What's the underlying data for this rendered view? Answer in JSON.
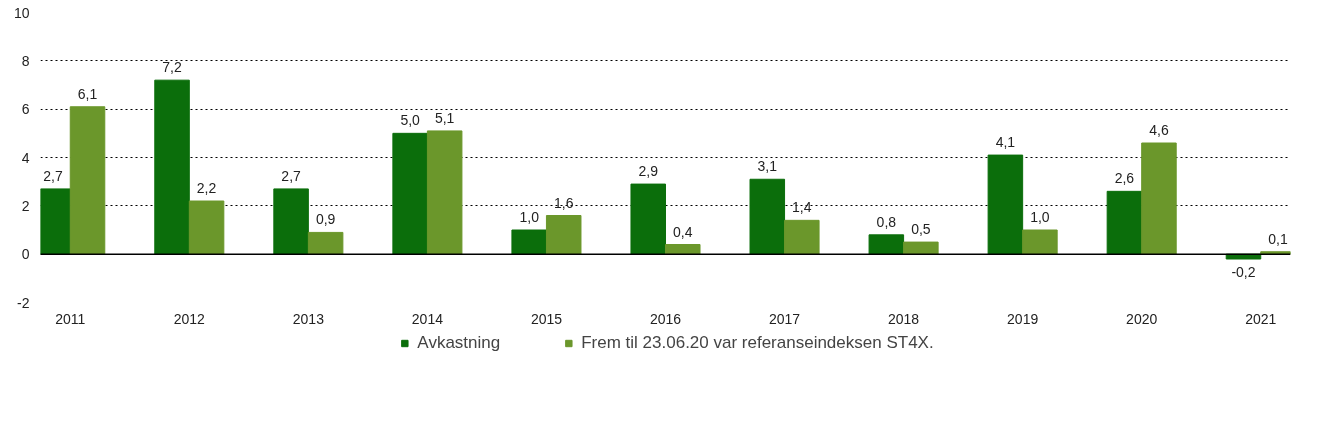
{
  "chart_data": {
    "type": "bar",
    "categories": [
      "2011",
      "2012",
      "2013",
      "2014",
      "2015",
      "2016",
      "2017",
      "2018",
      "2019",
      "2020",
      "2021"
    ],
    "series": [
      {
        "name": "Avkastning",
        "color": "#0b6e0b",
        "values": [
          2.7,
          7.2,
          2.7,
          5.0,
          1.0,
          2.9,
          3.1,
          0.8,
          4.1,
          2.6,
          -0.2
        ],
        "value_labels": [
          "2,7",
          "7,2",
          "2,7",
          "5,0",
          "1,0",
          "2,9",
          "3,1",
          "0,8",
          "4,1",
          "2,6",
          "-0,2"
        ]
      },
      {
        "name": "Frem til 23.06.20 var referanseindeksen ST4X.",
        "color": "#6b972b",
        "values": [
          6.1,
          2.2,
          0.9,
          5.1,
          1.6,
          0.4,
          1.4,
          0.5,
          1.0,
          4.6,
          0.1
        ],
        "value_labels": [
          "6,1",
          "2,2",
          "0,9",
          "5,1",
          "1,6",
          "0,4",
          "1,4",
          "0,5",
          "1,0",
          "4,6",
          "0,1"
        ]
      }
    ],
    "ylim": [
      -2,
      10
    ],
    "yticks": [
      {
        "value": -2,
        "label": "-2"
      },
      0,
      2,
      4,
      6,
      8,
      10
    ],
    "grid": "y",
    "legend": "bottom",
    "ref_lines": [
      {
        "axis": "y",
        "value": 0,
        "color": "#000000"
      }
    ]
  }
}
